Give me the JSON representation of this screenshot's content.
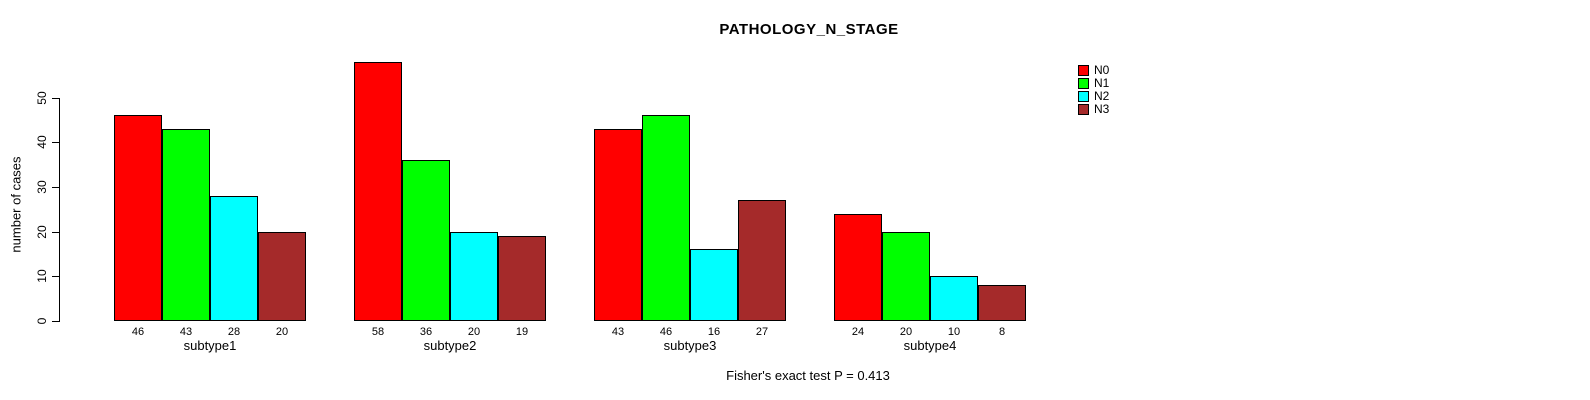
{
  "chart_data": {
    "type": "bar",
    "title": "PATHOLOGY_N_STAGE",
    "categories": [
      "subtype1",
      "subtype2",
      "subtype3",
      "subtype4"
    ],
    "series": [
      {
        "name": "N0",
        "color": "#FF0000",
        "values": [
          46,
          58,
          43,
          24
        ]
      },
      {
        "name": "N1",
        "color": "#00FF00",
        "values": [
          43,
          36,
          46,
          20
        ]
      },
      {
        "name": "N2",
        "color": "#00FFFF",
        "values": [
          28,
          20,
          16,
          10
        ]
      },
      {
        "name": "N3",
        "color": "#A52A2A",
        "values": [
          20,
          19,
          27,
          8
        ]
      }
    ],
    "xlabel": "",
    "ylabel": "number of cases",
    "ylim": [
      0,
      58
    ],
    "y_ticks": [
      0,
      10,
      20,
      30,
      40,
      50
    ],
    "bar_value_labels_shown": true,
    "grid": false,
    "legend_position": "top-right",
    "annotation": "Fisher's exact test P = 0.413"
  }
}
